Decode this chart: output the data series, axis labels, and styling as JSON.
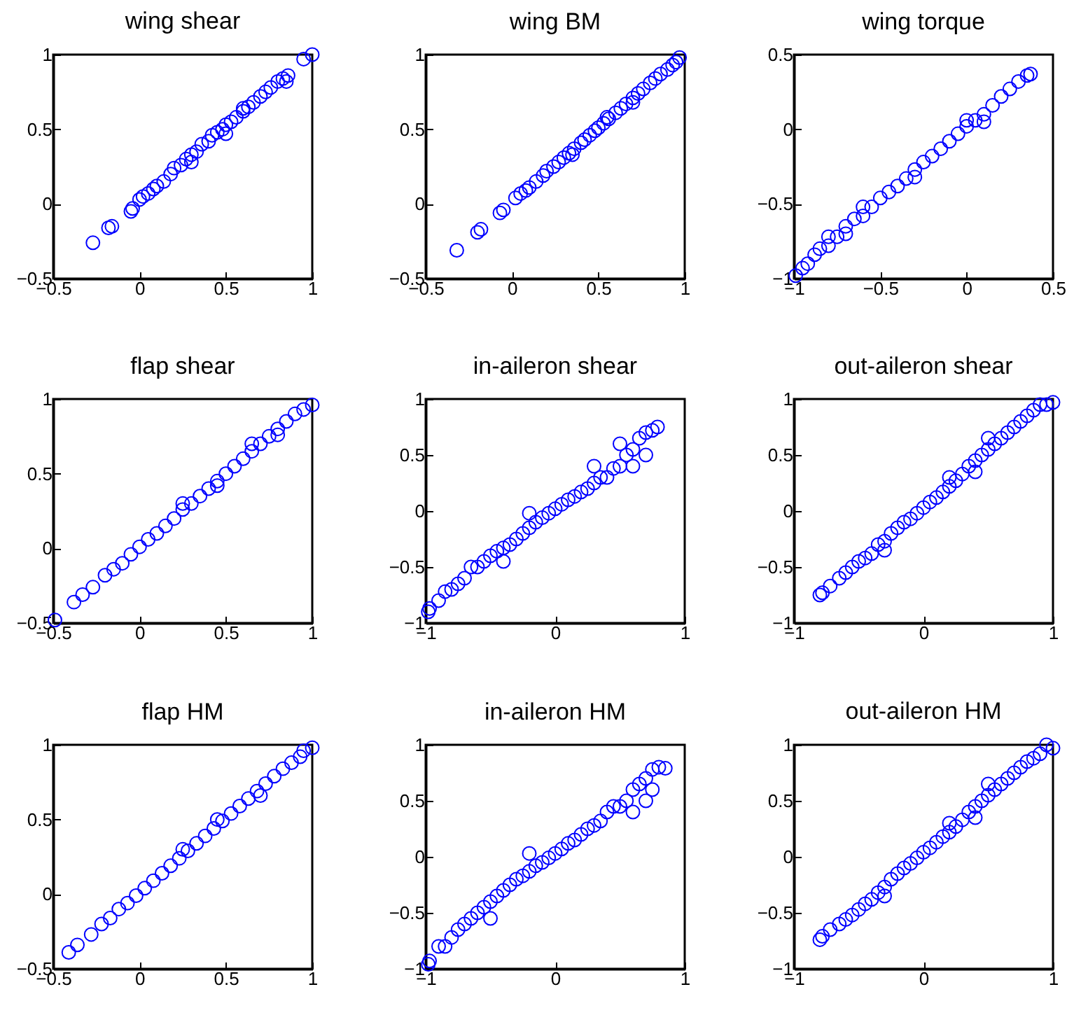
{
  "chart_data": [
    {
      "type": "scatter",
      "title": "wing shear",
      "color": "#0000ff",
      "marker": "circle",
      "xlim": [
        -0.5,
        1
      ],
      "ylim": [
        -0.5,
        1
      ],
      "xticks": [
        -0.5,
        0,
        0.5,
        1
      ],
      "yticks": [
        -0.5,
        0,
        0.5,
        1
      ],
      "x": [
        -0.27,
        -0.18,
        -0.16,
        -0.05,
        -0.04,
        0.0,
        0.02,
        0.05,
        0.08,
        0.1,
        0.14,
        0.18,
        0.2,
        0.24,
        0.27,
        0.3,
        0.33,
        0.36,
        0.4,
        0.42,
        0.45,
        0.48,
        0.5,
        0.53,
        0.56,
        0.6,
        0.63,
        0.66,
        0.7,
        0.73,
        0.76,
        0.8,
        0.83,
        0.86,
        0.85,
        0.95,
        1.0,
        0.3,
        0.5,
        0.6
      ],
      "values": [
        -0.26,
        -0.16,
        -0.15,
        -0.05,
        -0.03,
        0.03,
        0.05,
        0.07,
        0.1,
        0.12,
        0.15,
        0.2,
        0.24,
        0.26,
        0.3,
        0.33,
        0.35,
        0.4,
        0.42,
        0.46,
        0.48,
        0.5,
        0.53,
        0.55,
        0.58,
        0.62,
        0.65,
        0.68,
        0.72,
        0.75,
        0.78,
        0.82,
        0.84,
        0.86,
        0.82,
        0.97,
        1.0,
        0.28,
        0.47,
        0.64
      ]
    },
    {
      "type": "scatter",
      "title": "wing BM",
      "color": "#0000ff",
      "marker": "circle",
      "xlim": [
        -0.5,
        1
      ],
      "ylim": [
        -0.5,
        1
      ],
      "xticks": [
        -0.5,
        0,
        0.5,
        1
      ],
      "yticks": [
        -0.5,
        0,
        0.5,
        1
      ],
      "x": [
        -0.32,
        -0.2,
        -0.18,
        -0.07,
        -0.05,
        0.02,
        0.05,
        0.08,
        0.1,
        0.14,
        0.18,
        0.2,
        0.24,
        0.27,
        0.3,
        0.33,
        0.36,
        0.4,
        0.42,
        0.45,
        0.48,
        0.5,
        0.53,
        0.56,
        0.6,
        0.63,
        0.66,
        0.7,
        0.73,
        0.76,
        0.8,
        0.83,
        0.86,
        0.9,
        0.93,
        0.95,
        0.97,
        0.35,
        0.55,
        0.7
      ],
      "values": [
        -0.31,
        -0.19,
        -0.17,
        -0.06,
        -0.04,
        0.04,
        0.07,
        0.09,
        0.11,
        0.15,
        0.19,
        0.22,
        0.25,
        0.28,
        0.31,
        0.34,
        0.37,
        0.41,
        0.43,
        0.46,
        0.49,
        0.51,
        0.54,
        0.57,
        0.61,
        0.64,
        0.67,
        0.71,
        0.74,
        0.77,
        0.81,
        0.84,
        0.87,
        0.9,
        0.93,
        0.95,
        0.98,
        0.33,
        0.58,
        0.68
      ]
    },
    {
      "type": "scatter",
      "title": "wing torque",
      "color": "#0000ff",
      "marker": "circle",
      "xlim": [
        -1,
        0.5
      ],
      "ylim": [
        -1,
        0.5
      ],
      "xticks": [
        -1,
        -0.5,
        0,
        0.5
      ],
      "yticks": [
        -1,
        -0.5,
        0,
        0.5
      ],
      "x": [
        -0.99,
        -0.95,
        -0.92,
        -0.88,
        -0.85,
        -0.8,
        -0.75,
        -0.7,
        -0.65,
        -0.6,
        -0.55,
        -0.5,
        -0.45,
        -0.4,
        -0.35,
        -0.3,
        -0.25,
        -0.2,
        -0.15,
        -0.1,
        -0.05,
        0.0,
        0.05,
        0.1,
        0.15,
        0.2,
        0.25,
        0.3,
        0.35,
        0.37,
        -0.8,
        -0.7,
        -0.6,
        -0.3,
        0.0,
        0.1
      ],
      "values": [
        -0.98,
        -0.93,
        -0.9,
        -0.84,
        -0.8,
        -0.78,
        -0.72,
        -0.65,
        -0.6,
        -0.58,
        -0.52,
        -0.46,
        -0.42,
        -0.38,
        -0.33,
        -0.27,
        -0.22,
        -0.18,
        -0.13,
        -0.08,
        -0.03,
        0.02,
        0.06,
        0.1,
        0.16,
        0.22,
        0.27,
        0.32,
        0.36,
        0.37,
        -0.72,
        -0.7,
        -0.52,
        -0.32,
        0.06,
        0.05
      ]
    },
    {
      "type": "scatter",
      "title": "flap shear",
      "color": "#0000ff",
      "marker": "circle",
      "xlim": [
        -0.5,
        1
      ],
      "ylim": [
        -0.5,
        1
      ],
      "xticks": [
        -0.5,
        0,
        0.5,
        1
      ],
      "yticks": [
        -0.5,
        0,
        0.5,
        1
      ],
      "x": [
        -0.49,
        -0.38,
        -0.33,
        -0.27,
        -0.2,
        -0.15,
        -0.1,
        -0.05,
        0.0,
        0.05,
        0.1,
        0.15,
        0.2,
        0.25,
        0.3,
        0.35,
        0.4,
        0.45,
        0.5,
        0.55,
        0.6,
        0.65,
        0.7,
        0.75,
        0.8,
        0.85,
        0.9,
        0.95,
        1.0,
        0.25,
        0.45,
        0.65,
        0.8
      ],
      "values": [
        -0.48,
        -0.36,
        -0.31,
        -0.26,
        -0.18,
        -0.14,
        -0.1,
        -0.04,
        0.01,
        0.06,
        0.1,
        0.15,
        0.2,
        0.26,
        0.3,
        0.35,
        0.4,
        0.45,
        0.5,
        0.55,
        0.6,
        0.65,
        0.7,
        0.75,
        0.8,
        0.85,
        0.9,
        0.93,
        0.96,
        0.3,
        0.42,
        0.7,
        0.76
      ]
    },
    {
      "type": "scatter",
      "title": "in-aileron shear",
      "color": "#0000ff",
      "marker": "circle",
      "xlim": [
        -1,
        1
      ],
      "ylim": [
        -1,
        1
      ],
      "xticks": [
        -1,
        0,
        1
      ],
      "yticks": [
        -1,
        -0.5,
        0,
        0.5,
        1
      ],
      "x": [
        -0.98,
        -0.97,
        -0.9,
        -0.85,
        -0.8,
        -0.75,
        -0.7,
        -0.65,
        -0.6,
        -0.55,
        -0.5,
        -0.45,
        -0.4,
        -0.35,
        -0.3,
        -0.25,
        -0.2,
        -0.15,
        -0.1,
        -0.05,
        0.0,
        0.05,
        0.1,
        0.15,
        0.2,
        0.25,
        0.3,
        0.35,
        0.4,
        0.45,
        0.5,
        0.55,
        0.6,
        0.65,
        0.7,
        0.75,
        0.79,
        0.6,
        0.7,
        0.5,
        -0.2,
        -0.4,
        0.3
      ],
      "values": [
        -0.9,
        -0.87,
        -0.8,
        -0.72,
        -0.7,
        -0.65,
        -0.6,
        -0.5,
        -0.5,
        -0.45,
        -0.4,
        -0.36,
        -0.33,
        -0.3,
        -0.25,
        -0.2,
        -0.15,
        -0.1,
        -0.06,
        -0.02,
        0.02,
        0.06,
        0.1,
        0.13,
        0.17,
        0.2,
        0.25,
        0.3,
        0.3,
        0.38,
        0.4,
        0.5,
        0.55,
        0.65,
        0.7,
        0.72,
        0.75,
        0.4,
        0.5,
        0.6,
        -0.02,
        -0.45,
        0.4
      ]
    },
    {
      "type": "scatter",
      "title": "out-aileron shear",
      "color": "#0000ff",
      "marker": "circle",
      "xlim": [
        -1,
        1
      ],
      "ylim": [
        -1,
        1
      ],
      "xticks": [
        -1,
        0,
        1
      ],
      "yticks": [
        -1,
        -0.5,
        0,
        0.5,
        1
      ],
      "x": [
        -0.8,
        -0.78,
        -0.72,
        -0.65,
        -0.6,
        -0.55,
        -0.5,
        -0.45,
        -0.4,
        -0.35,
        -0.3,
        -0.25,
        -0.2,
        -0.15,
        -0.1,
        -0.05,
        0.0,
        0.05,
        0.1,
        0.15,
        0.2,
        0.25,
        0.3,
        0.35,
        0.4,
        0.45,
        0.5,
        0.55,
        0.6,
        0.65,
        0.7,
        0.75,
        0.8,
        0.85,
        0.9,
        0.95,
        1.0,
        0.4,
        0.5,
        0.2,
        -0.3
      ],
      "values": [
        -0.75,
        -0.73,
        -0.67,
        -0.6,
        -0.55,
        -0.5,
        -0.45,
        -0.42,
        -0.38,
        -0.3,
        -0.27,
        -0.2,
        -0.15,
        -0.1,
        -0.07,
        -0.02,
        0.03,
        0.08,
        0.12,
        0.17,
        0.22,
        0.27,
        0.33,
        0.4,
        0.45,
        0.5,
        0.55,
        0.6,
        0.65,
        0.7,
        0.75,
        0.8,
        0.85,
        0.9,
        0.95,
        0.95,
        0.97,
        0.35,
        0.65,
        0.3,
        -0.35
      ]
    },
    {
      "type": "scatter",
      "title": "flap HM",
      "color": "#0000ff",
      "marker": "circle",
      "xlim": [
        -0.5,
        1
      ],
      "ylim": [
        -0.5,
        1
      ],
      "xticks": [
        -0.5,
        0,
        0.5,
        1
      ],
      "yticks": [
        -0.5,
        0,
        0.5,
        1
      ],
      "x": [
        -0.41,
        -0.36,
        -0.28,
        -0.22,
        -0.17,
        -0.12,
        -0.07,
        -0.02,
        0.03,
        0.08,
        0.13,
        0.18,
        0.23,
        0.28,
        0.33,
        0.38,
        0.43,
        0.48,
        0.53,
        0.58,
        0.63,
        0.68,
        0.73,
        0.78,
        0.83,
        0.88,
        0.93,
        0.95,
        1.0,
        0.25,
        0.45,
        0.7
      ],
      "values": [
        -0.39,
        -0.34,
        -0.27,
        -0.2,
        -0.16,
        -0.1,
        -0.06,
        -0.01,
        0.04,
        0.09,
        0.14,
        0.19,
        0.24,
        0.29,
        0.34,
        0.39,
        0.44,
        0.49,
        0.54,
        0.59,
        0.64,
        0.69,
        0.74,
        0.79,
        0.84,
        0.88,
        0.92,
        0.96,
        0.98,
        0.3,
        0.5,
        0.66
      ]
    },
    {
      "type": "scatter",
      "title": "in-aileron HM",
      "color": "#0000ff",
      "marker": "circle",
      "xlim": [
        -1,
        1
      ],
      "ylim": [
        -1,
        1
      ],
      "xticks": [
        -1,
        0,
        1
      ],
      "yticks": [
        -1,
        -0.5,
        0,
        0.5,
        1
      ],
      "x": [
        -0.98,
        -0.97,
        -0.9,
        -0.85,
        -0.8,
        -0.75,
        -0.7,
        -0.65,
        -0.6,
        -0.55,
        -0.5,
        -0.45,
        -0.4,
        -0.35,
        -0.3,
        -0.25,
        -0.2,
        -0.15,
        -0.1,
        -0.05,
        0.0,
        0.05,
        0.1,
        0.15,
        0.2,
        0.25,
        0.3,
        0.35,
        0.4,
        0.45,
        0.5,
        0.55,
        0.6,
        0.65,
        0.7,
        0.75,
        0.8,
        0.85,
        -0.2,
        0.6,
        0.7,
        0.75,
        -0.5
      ],
      "values": [
        -0.96,
        -0.93,
        -0.8,
        -0.8,
        -0.72,
        -0.65,
        -0.6,
        -0.55,
        -0.5,
        -0.45,
        -0.4,
        -0.35,
        -0.3,
        -0.25,
        -0.2,
        -0.17,
        -0.13,
        -0.08,
        -0.05,
        -0.01,
        0.03,
        0.07,
        0.12,
        0.15,
        0.2,
        0.25,
        0.28,
        0.32,
        0.4,
        0.45,
        0.45,
        0.5,
        0.6,
        0.65,
        0.7,
        0.78,
        0.8,
        0.79,
        0.03,
        0.4,
        0.5,
        0.6,
        -0.55
      ]
    },
    {
      "type": "scatter",
      "title": "out-aileron HM",
      "color": "#0000ff",
      "marker": "circle",
      "xlim": [
        -1,
        1
      ],
      "ylim": [
        -1,
        1
      ],
      "xticks": [
        -1,
        0,
        1
      ],
      "yticks": [
        -1,
        -0.5,
        0,
        0.5,
        1
      ],
      "x": [
        -0.8,
        -0.78,
        -0.72,
        -0.65,
        -0.6,
        -0.55,
        -0.5,
        -0.45,
        -0.4,
        -0.35,
        -0.3,
        -0.25,
        -0.2,
        -0.15,
        -0.1,
        -0.05,
        0.0,
        0.05,
        0.1,
        0.15,
        0.2,
        0.25,
        0.3,
        0.35,
        0.4,
        0.45,
        0.5,
        0.55,
        0.6,
        0.65,
        0.7,
        0.75,
        0.8,
        0.85,
        0.9,
        0.95,
        1.0,
        0.4,
        0.5,
        0.2,
        -0.3
      ],
      "values": [
        -0.74,
        -0.71,
        -0.65,
        -0.6,
        -0.56,
        -0.52,
        -0.47,
        -0.42,
        -0.38,
        -0.32,
        -0.27,
        -0.2,
        -0.15,
        -0.1,
        -0.06,
        -0.01,
        0.04,
        0.08,
        0.13,
        0.18,
        0.22,
        0.27,
        0.33,
        0.4,
        0.45,
        0.5,
        0.55,
        0.6,
        0.65,
        0.7,
        0.75,
        0.8,
        0.85,
        0.88,
        0.92,
        1.0,
        0.97,
        0.35,
        0.65,
        0.3,
        -0.35
      ]
    }
  ]
}
